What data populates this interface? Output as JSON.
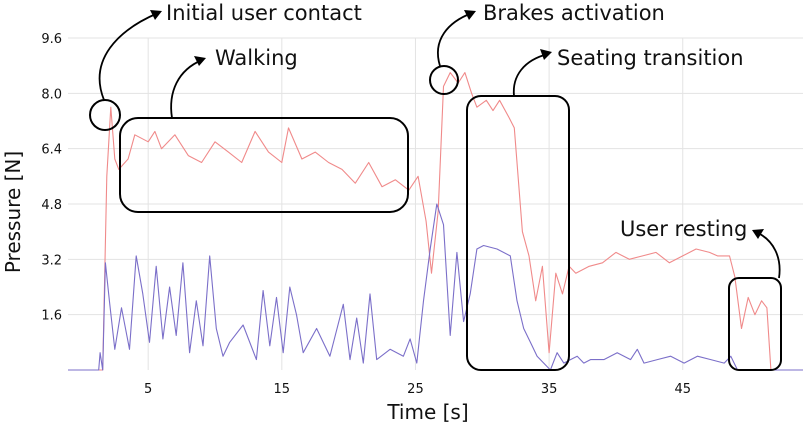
{
  "chart_data": {
    "type": "line",
    "xlabel": "Time [s]",
    "ylabel": "Pressure [N]",
    "xlim": [
      -1,
      54
    ],
    "ylim": [
      0,
      9.6
    ],
    "xticks": [
      5,
      15,
      25,
      35,
      45
    ],
    "yticks": [
      1.6,
      3.2,
      4.8,
      6.4,
      8.0,
      9.6
    ],
    "ytick_labels": [
      "1.6",
      "3.2",
      "4.8",
      "6.4",
      "8.0",
      "9.6"
    ],
    "grid": true,
    "series": [
      {
        "color": "#f08a8a",
        "points": [
          [
            -1,
            0
          ],
          [
            1.6,
            0
          ],
          [
            1.9,
            5.6
          ],
          [
            2.2,
            7.6
          ],
          [
            2.5,
            6.1
          ],
          [
            2.8,
            5.8
          ],
          [
            3.5,
            6.1
          ],
          [
            4,
            6.8
          ],
          [
            5,
            6.6
          ],
          [
            5.5,
            6.9
          ],
          [
            6,
            6.4
          ],
          [
            7,
            6.8
          ],
          [
            8,
            6.2
          ],
          [
            9,
            6.0
          ],
          [
            10,
            6.6
          ],
          [
            11,
            6.3
          ],
          [
            12,
            6.0
          ],
          [
            13,
            6.9
          ],
          [
            14,
            6.3
          ],
          [
            15,
            6.0
          ],
          [
            15.5,
            7.0
          ],
          [
            16.5,
            6.1
          ],
          [
            17.5,
            6.3
          ],
          [
            18.5,
            6.0
          ],
          [
            19.5,
            5.8
          ],
          [
            20.5,
            5.4
          ],
          [
            21.5,
            6.0
          ],
          [
            22.5,
            5.3
          ],
          [
            23.5,
            5.5
          ],
          [
            24.5,
            5.2
          ],
          [
            25.2,
            5.6
          ],
          [
            25.8,
            4.3
          ],
          [
            26.2,
            2.8
          ],
          [
            26.7,
            4.6
          ],
          [
            27.1,
            8.2
          ],
          [
            27.6,
            8.6
          ],
          [
            28.2,
            8.3
          ],
          [
            28.7,
            8.6
          ],
          [
            29.2,
            8.0
          ],
          [
            29.6,
            7.6
          ],
          [
            30.3,
            7.8
          ],
          [
            30.8,
            7.5
          ],
          [
            31.3,
            7.8
          ],
          [
            32,
            7.3
          ],
          [
            32.4,
            7.0
          ],
          [
            33,
            4.0
          ],
          [
            33.5,
            3.3
          ],
          [
            34,
            2.0
          ],
          [
            34.5,
            3.0
          ],
          [
            35,
            0.5
          ],
          [
            35.5,
            2.8
          ],
          [
            36,
            2.2
          ],
          [
            36.5,
            3.0
          ],
          [
            37,
            2.8
          ],
          [
            38,
            3.0
          ],
          [
            39,
            3.1
          ],
          [
            40,
            3.4
          ],
          [
            41,
            3.2
          ],
          [
            42,
            3.3
          ],
          [
            43,
            3.4
          ],
          [
            44,
            3.1
          ],
          [
            45,
            3.3
          ],
          [
            46,
            3.5
          ],
          [
            47,
            3.4
          ],
          [
            47.6,
            3.3
          ],
          [
            48.5,
            3.3
          ],
          [
            48.9,
            2.7
          ],
          [
            49.4,
            1.2
          ],
          [
            49.9,
            2.1
          ],
          [
            50.4,
            1.6
          ],
          [
            50.9,
            2.0
          ],
          [
            51.3,
            1.8
          ],
          [
            51.6,
            0
          ],
          [
            54,
            0
          ]
        ]
      },
      {
        "color": "#7b6fc9",
        "points": [
          [
            -1,
            0
          ],
          [
            1.3,
            0
          ],
          [
            1.4,
            0.5
          ],
          [
            1.6,
            0
          ],
          [
            1.8,
            3.1
          ],
          [
            2.1,
            2.0
          ],
          [
            2.5,
            0.6
          ],
          [
            3,
            1.8
          ],
          [
            3.6,
            0.6
          ],
          [
            4.1,
            3.3
          ],
          [
            4.6,
            2.2
          ],
          [
            5.1,
            0.8
          ],
          [
            5.6,
            3.0
          ],
          [
            6.1,
            0.9
          ],
          [
            6.6,
            2.4
          ],
          [
            7.1,
            1.0
          ],
          [
            7.6,
            3.1
          ],
          [
            8.1,
            0.5
          ],
          [
            8.6,
            2.0
          ],
          [
            9.1,
            0.7
          ],
          [
            9.6,
            3.3
          ],
          [
            10.1,
            1.2
          ],
          [
            10.6,
            0.4
          ],
          [
            11.1,
            0.8
          ],
          [
            12.1,
            1.3
          ],
          [
            13.1,
            0.3
          ],
          [
            13.6,
            2.3
          ],
          [
            14.1,
            0.7
          ],
          [
            14.6,
            2.1
          ],
          [
            15.1,
            0.5
          ],
          [
            15.6,
            2.4
          ],
          [
            16.1,
            1.6
          ],
          [
            16.6,
            0.5
          ],
          [
            17.6,
            1.2
          ],
          [
            18.6,
            0.4
          ],
          [
            19.6,
            1.9
          ],
          [
            20.1,
            0.3
          ],
          [
            20.6,
            1.5
          ],
          [
            21.1,
            0.2
          ],
          [
            21.6,
            2.2
          ],
          [
            22.1,
            0.3
          ],
          [
            23.1,
            0.6
          ],
          [
            24.1,
            0.4
          ],
          [
            24.6,
            0.9
          ],
          [
            25.1,
            0.2
          ],
          [
            25.6,
            2.0
          ],
          [
            26.1,
            3.5
          ],
          [
            26.6,
            4.8
          ],
          [
            27.1,
            4.2
          ],
          [
            27.6,
            1.0
          ],
          [
            28.1,
            3.4
          ],
          [
            28.6,
            1.4
          ],
          [
            29.1,
            2.2
          ],
          [
            29.6,
            3.5
          ],
          [
            30.1,
            3.6
          ],
          [
            31.1,
            3.5
          ],
          [
            32.1,
            3.3
          ],
          [
            32.6,
            2.0
          ],
          [
            33.1,
            1.2
          ],
          [
            33.6,
            0.8
          ],
          [
            34.1,
            0.4
          ],
          [
            35.1,
            0
          ],
          [
            35.6,
            0.5
          ],
          [
            36.1,
            0.2
          ],
          [
            36.6,
            0.3
          ],
          [
            37.1,
            0.4
          ],
          [
            37.6,
            0.2
          ],
          [
            38.1,
            0.3
          ],
          [
            39.1,
            0.3
          ],
          [
            40.1,
            0.5
          ],
          [
            41.1,
            0.3
          ],
          [
            41.6,
            0.6
          ],
          [
            42.1,
            0.2
          ],
          [
            43.1,
            0.3
          ],
          [
            44.1,
            0.4
          ],
          [
            45.1,
            0.2
          ],
          [
            46.1,
            0.4
          ],
          [
            47.1,
            0.3
          ],
          [
            48.1,
            0.2
          ],
          [
            48.6,
            0.4
          ],
          [
            49.1,
            0
          ],
          [
            54,
            0
          ]
        ]
      }
    ],
    "annotations": [
      {
        "text": "Initial user contact"
      },
      {
        "text": "Walking"
      },
      {
        "text": "Brakes activation"
      },
      {
        "text": "Seating transition"
      },
      {
        "text": "User resting"
      }
    ]
  }
}
